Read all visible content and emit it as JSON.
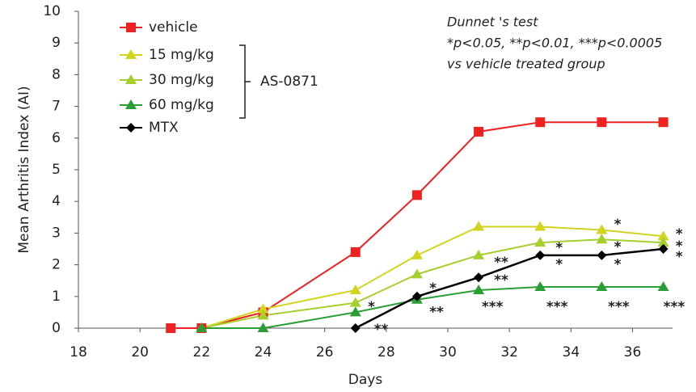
{
  "chart_data": {
    "type": "line",
    "xlabel": "Days",
    "ylabel": "Mean Arthritis Index (AI)",
    "x": [
      21,
      22,
      24,
      27,
      29,
      31,
      33,
      35,
      37
    ],
    "xlim": [
      18,
      37.3
    ],
    "xticks": [
      18,
      20,
      22,
      24,
      26,
      28,
      30,
      32,
      34,
      36
    ],
    "ylim": [
      0,
      10
    ],
    "yticks": [
      0,
      1,
      2,
      3,
      4,
      5,
      6,
      7,
      8,
      9,
      10
    ],
    "series": [
      {
        "name": "vehicle",
        "color": "#ee2222",
        "marker": "square",
        "values": [
          0,
          0,
          0.5,
          2.4,
          4.2,
          6.2,
          6.5,
          6.5,
          6.5
        ]
      },
      {
        "name": "15 mg/kg",
        "color": "#d2d41e",
        "marker": "triangle",
        "values": [
          null,
          0,
          0.6,
          1.2,
          2.3,
          3.2,
          3.2,
          3.1,
          2.9
        ]
      },
      {
        "name": "30 mg/kg",
        "color": "#a6cf2e",
        "marker": "triangle",
        "values": [
          null,
          0,
          0.4,
          0.8,
          1.7,
          2.3,
          2.7,
          2.8,
          2.7
        ]
      },
      {
        "name": "60 mg/kg",
        "color": "#2c9e36",
        "marker": "triangle",
        "values": [
          null,
          0,
          0,
          0.5,
          0.9,
          1.2,
          1.3,
          1.3,
          1.3
        ]
      },
      {
        "name": "MTX",
        "color": "#000000",
        "marker": "diamond",
        "values": [
          null,
          null,
          null,
          0,
          1.0,
          1.6,
          2.3,
          2.3,
          2.5
        ]
      }
    ],
    "group_label": "AS-0871",
    "notes": [
      "Dunnet 's test",
      "*p<0.05, **p<0.01, ***p<0.0005",
      "vs vehicle treated group"
    ],
    "annotations": [
      {
        "text": "*",
        "x": 27.4,
        "y": 0.66,
        "color": "#000000"
      },
      {
        "text": "**",
        "x": 27.6,
        "y": -0.05,
        "color": "#000000"
      },
      {
        "text": "*",
        "x": 29.4,
        "y": 1.25,
        "color": "#000000"
      },
      {
        "text": "**",
        "x": 29.4,
        "y": 0.5,
        "color": "#000000"
      },
      {
        "text": "**",
        "x": 31.5,
        "y": 2.07,
        "color": "#000000"
      },
      {
        "text": "**",
        "x": 31.5,
        "y": 1.5,
        "color": "#000000"
      },
      {
        "text": "***",
        "x": 31.1,
        "y": 0.66,
        "color": "#2c9e36"
      },
      {
        "text": "*",
        "x": 33.5,
        "y": 2.52,
        "color": "#000000"
      },
      {
        "text": "*",
        "x": 33.5,
        "y": 2.0,
        "color": "#000000"
      },
      {
        "text": "***",
        "x": 33.2,
        "y": 0.66,
        "color": "#2c9e36"
      },
      {
        "text": "*",
        "x": 35.4,
        "y": 3.27,
        "color": "#000000"
      },
      {
        "text": "*",
        "x": 35.4,
        "y": 2.55,
        "color": "#000000"
      },
      {
        "text": "*",
        "x": 35.4,
        "y": 2.0,
        "color": "#000000"
      },
      {
        "text": "***",
        "x": 35.2,
        "y": 0.66,
        "color": "#2c9e36"
      },
      {
        "text": "*",
        "x": 37.4,
        "y": 2.96,
        "color": "#000000"
      },
      {
        "text": "*",
        "x": 37.4,
        "y": 2.58,
        "color": "#000000"
      },
      {
        "text": "*",
        "x": 37.4,
        "y": 2.24,
        "color": "#000000"
      },
      {
        "text": "***",
        "x": 37.0,
        "y": 0.66,
        "color": "#2c9e36"
      }
    ]
  }
}
